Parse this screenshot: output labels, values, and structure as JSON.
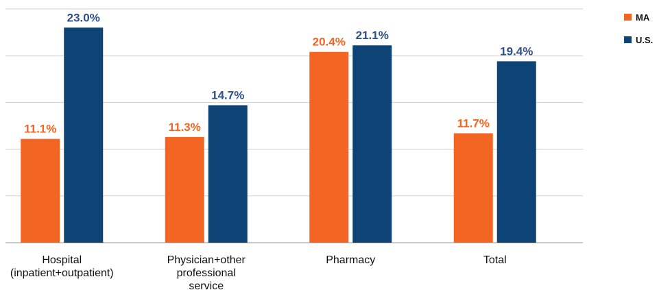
{
  "chart_data": {
    "type": "bar",
    "categories": [
      [
        "Hospital",
        "(inpatient+outpatient)"
      ],
      [
        "Physician+other",
        "professional",
        "service"
      ],
      [
        "Pharmacy"
      ],
      [
        "Total"
      ]
    ],
    "series": [
      {
        "name": "MA",
        "color": "#F26522",
        "values": [
          11.1,
          11.3,
          20.4,
          11.7
        ],
        "labels": [
          "11.1%",
          "11.3%",
          "20.4%",
          "11.7%"
        ]
      },
      {
        "name": "U.S.",
        "color": "#0E4475",
        "values": [
          23.0,
          14.7,
          21.1,
          19.4
        ],
        "labels": [
          "23.0%",
          "14.7%",
          "21.1%",
          "19.4%"
        ]
      }
    ],
    "ylim": [
      0,
      25
    ],
    "grid": true,
    "legend": "top-right",
    "title": "",
    "xlabel": "",
    "ylabel": ""
  }
}
